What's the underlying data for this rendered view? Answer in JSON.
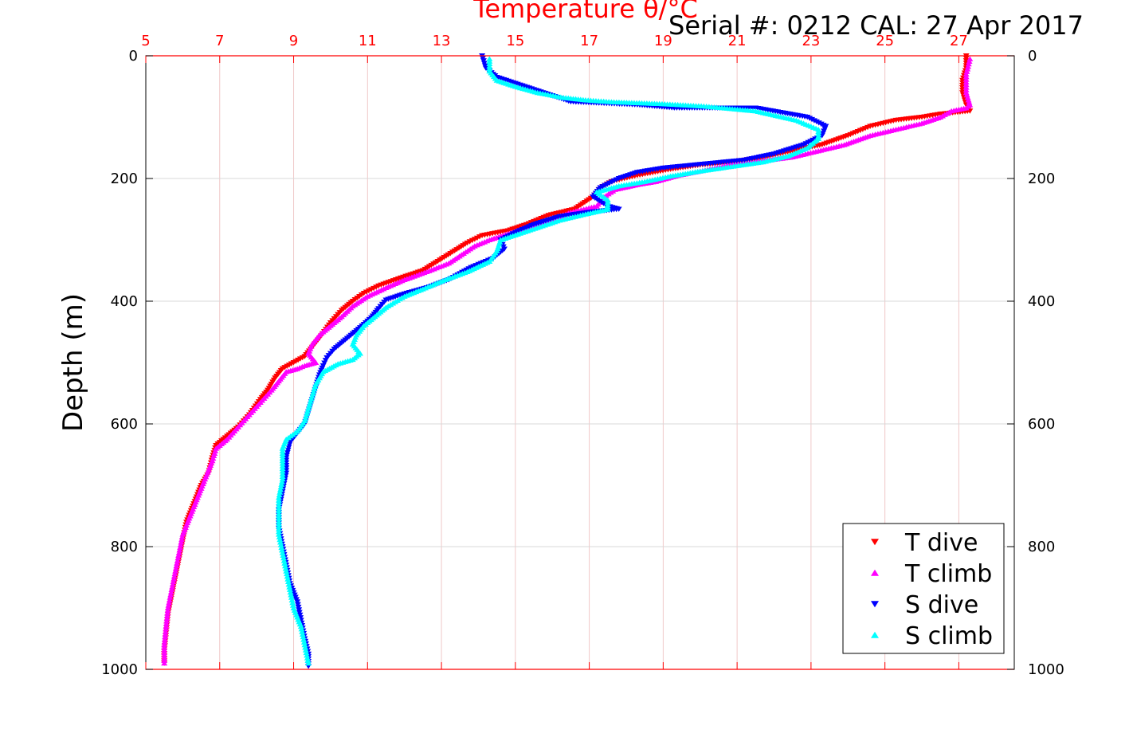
{
  "chart_data": {
    "type": "scatter",
    "title": "Temperature θ/°C",
    "annotation": "Serial #: 0212  CAL: 27 Apr 2017",
    "xlabel": "Temperature θ/°C",
    "ylabel": "Depth (m)",
    "xlim": [
      5,
      28.5
    ],
    "ylim": [
      0,
      1000
    ],
    "y_reversed": true,
    "x_ticks": [
      5,
      7,
      9,
      11,
      13,
      15,
      17,
      19,
      21,
      23,
      25,
      27
    ],
    "y_ticks": [
      0,
      200,
      400,
      600,
      800,
      1000
    ],
    "grid": true,
    "legend_position": "bottom-right",
    "colors": {
      "axis_top": "#ff0000",
      "axis_other": "#000000",
      "grid_x": "#f0c8c8",
      "grid_y": "#d8d8d8"
    },
    "series": [
      {
        "name": "T dive",
        "color": "#ff0000",
        "marker": "triangle-down",
        "points": [
          [
            27.2,
            0
          ],
          [
            27.2,
            20
          ],
          [
            27.1,
            40
          ],
          [
            27.1,
            60
          ],
          [
            27.2,
            80
          ],
          [
            27.3,
            90
          ],
          [
            26.5,
            95
          ],
          [
            26.0,
            100
          ],
          [
            25.3,
            105
          ],
          [
            24.6,
            115
          ],
          [
            24.0,
            130
          ],
          [
            23.3,
            145
          ],
          [
            22.5,
            155
          ],
          [
            21.7,
            165
          ],
          [
            21.0,
            172
          ],
          [
            20.0,
            178
          ],
          [
            19.2,
            185
          ],
          [
            18.3,
            195
          ],
          [
            17.6,
            205
          ],
          [
            17.3,
            215
          ],
          [
            17.1,
            230
          ],
          [
            16.6,
            250
          ],
          [
            15.9,
            260
          ],
          [
            15.3,
            275
          ],
          [
            14.8,
            285
          ],
          [
            14.1,
            293
          ],
          [
            13.7,
            305
          ],
          [
            13.3,
            320
          ],
          [
            12.9,
            335
          ],
          [
            12.5,
            350
          ],
          [
            11.9,
            362
          ],
          [
            11.3,
            375
          ],
          [
            10.9,
            387
          ],
          [
            10.6,
            400
          ],
          [
            10.3,
            415
          ],
          [
            10.0,
            435
          ],
          [
            9.7,
            460
          ],
          [
            9.5,
            475
          ],
          [
            9.3,
            490
          ],
          [
            9.0,
            500
          ],
          [
            8.7,
            510
          ],
          [
            8.5,
            525
          ],
          [
            8.3,
            545
          ],
          [
            8.1,
            560
          ],
          [
            7.8,
            585
          ],
          [
            7.5,
            605
          ],
          [
            7.2,
            620
          ],
          [
            6.9,
            635
          ],
          [
            6.8,
            655
          ],
          [
            6.7,
            680
          ],
          [
            6.5,
            700
          ],
          [
            6.3,
            730
          ],
          [
            6.1,
            760
          ],
          [
            6.0,
            790
          ],
          [
            5.9,
            820
          ],
          [
            5.8,
            850
          ],
          [
            5.7,
            880
          ],
          [
            5.6,
            910
          ],
          [
            5.55,
            940
          ],
          [
            5.5,
            970
          ],
          [
            5.5,
            990
          ]
        ]
      },
      {
        "name": "T climb",
        "color": "#ff00ff",
        "marker": "triangle-up",
        "points": [
          [
            5.5,
            990
          ],
          [
            5.5,
            960
          ],
          [
            5.55,
            930
          ],
          [
            5.6,
            900
          ],
          [
            5.7,
            870
          ],
          [
            5.8,
            840
          ],
          [
            5.9,
            810
          ],
          [
            6.0,
            780
          ],
          [
            6.2,
            750
          ],
          [
            6.4,
            720
          ],
          [
            6.6,
            690
          ],
          [
            6.8,
            660
          ],
          [
            6.9,
            640
          ],
          [
            7.2,
            625
          ],
          [
            7.5,
            605
          ],
          [
            7.8,
            585
          ],
          [
            8.1,
            565
          ],
          [
            8.4,
            545
          ],
          [
            8.6,
            530
          ],
          [
            8.8,
            515
          ],
          [
            9.1,
            510
          ],
          [
            9.3,
            505
          ],
          [
            9.6,
            500
          ],
          [
            9.4,
            485
          ],
          [
            9.5,
            470
          ],
          [
            9.7,
            455
          ],
          [
            10.0,
            440
          ],
          [
            10.3,
            425
          ],
          [
            10.6,
            408
          ],
          [
            11.0,
            392
          ],
          [
            11.5,
            378
          ],
          [
            12.0,
            365
          ],
          [
            12.6,
            352
          ],
          [
            13.2,
            338
          ],
          [
            13.6,
            322
          ],
          [
            13.9,
            310
          ],
          [
            14.3,
            300
          ],
          [
            14.8,
            290
          ],
          [
            15.3,
            280
          ],
          [
            15.9,
            270
          ],
          [
            16.5,
            255
          ],
          [
            17.2,
            245
          ],
          [
            17.4,
            230
          ],
          [
            17.7,
            218
          ],
          [
            18.3,
            210
          ],
          [
            18.8,
            205
          ],
          [
            19.4,
            195
          ],
          [
            20.0,
            188
          ],
          [
            20.8,
            178
          ],
          [
            21.6,
            172
          ],
          [
            22.5,
            165
          ],
          [
            23.2,
            155
          ],
          [
            23.9,
            145
          ],
          [
            24.6,
            130
          ],
          [
            25.3,
            120
          ],
          [
            26.0,
            110
          ],
          [
            26.5,
            100
          ],
          [
            26.8,
            90
          ],
          [
            27.2,
            85
          ],
          [
            27.3,
            80
          ],
          [
            27.2,
            60
          ],
          [
            27.2,
            30
          ],
          [
            27.3,
            5
          ]
        ]
      },
      {
        "name": "S dive",
        "color": "#0000ff",
        "marker": "triangle-down",
        "points": [
          [
            14.1,
            0
          ],
          [
            14.2,
            20
          ],
          [
            14.5,
            35
          ],
          [
            15.0,
            45
          ],
          [
            15.5,
            55
          ],
          [
            16.0,
            65
          ],
          [
            16.5,
            75
          ],
          [
            18.3,
            80
          ],
          [
            19.3,
            85
          ],
          [
            21.5,
            85
          ],
          [
            22.9,
            100
          ],
          [
            23.4,
            115
          ],
          [
            23.3,
            130
          ],
          [
            22.8,
            145
          ],
          [
            22.0,
            160
          ],
          [
            21.2,
            170
          ],
          [
            20.0,
            177
          ],
          [
            19.0,
            183
          ],
          [
            18.3,
            190
          ],
          [
            17.8,
            200
          ],
          [
            17.3,
            215
          ],
          [
            17.1,
            230
          ],
          [
            17.5,
            245
          ],
          [
            17.8,
            250
          ],
          [
            17.0,
            255
          ],
          [
            16.2,
            262
          ],
          [
            15.5,
            275
          ],
          [
            15.0,
            288
          ],
          [
            14.6,
            300
          ],
          [
            14.7,
            315
          ],
          [
            14.4,
            330
          ],
          [
            13.8,
            345
          ],
          [
            13.2,
            365
          ],
          [
            12.6,
            378
          ],
          [
            12.0,
            388
          ],
          [
            11.5,
            398
          ],
          [
            11.3,
            412
          ],
          [
            11.1,
            427
          ],
          [
            10.8,
            443
          ],
          [
            10.4,
            463
          ],
          [
            10.1,
            478
          ],
          [
            9.9,
            492
          ],
          [
            9.8,
            505
          ],
          [
            9.7,
            520
          ],
          [
            9.6,
            540
          ],
          [
            9.5,
            560
          ],
          [
            9.4,
            580
          ],
          [
            9.3,
            600
          ],
          [
            9.1,
            615
          ],
          [
            8.9,
            630
          ],
          [
            8.8,
            655
          ],
          [
            8.8,
            680
          ],
          [
            8.7,
            710
          ],
          [
            8.6,
            740
          ],
          [
            8.6,
            770
          ],
          [
            8.7,
            800
          ],
          [
            8.8,
            830
          ],
          [
            8.9,
            860
          ],
          [
            9.1,
            890
          ],
          [
            9.2,
            920
          ],
          [
            9.3,
            950
          ],
          [
            9.4,
            975
          ],
          [
            9.4,
            995
          ]
        ]
      },
      {
        "name": "S climb",
        "color": "#00ffff",
        "marker": "triangle-up",
        "points": [
          [
            9.4,
            990
          ],
          [
            9.3,
            960
          ],
          [
            9.2,
            930
          ],
          [
            9.0,
            900
          ],
          [
            8.9,
            870
          ],
          [
            8.8,
            840
          ],
          [
            8.7,
            810
          ],
          [
            8.6,
            780
          ],
          [
            8.6,
            750
          ],
          [
            8.6,
            720
          ],
          [
            8.7,
            690
          ],
          [
            8.7,
            660
          ],
          [
            8.7,
            640
          ],
          [
            8.8,
            625
          ],
          [
            9.1,
            612
          ],
          [
            9.3,
            595
          ],
          [
            9.4,
            575
          ],
          [
            9.5,
            555
          ],
          [
            9.6,
            535
          ],
          [
            9.8,
            515
          ],
          [
            10.2,
            502
          ],
          [
            10.6,
            495
          ],
          [
            10.8,
            485
          ],
          [
            10.6,
            470
          ],
          [
            10.7,
            455
          ],
          [
            10.9,
            440
          ],
          [
            11.2,
            425
          ],
          [
            11.5,
            410
          ],
          [
            12.0,
            392
          ],
          [
            12.5,
            380
          ],
          [
            13.1,
            365
          ],
          [
            13.7,
            352
          ],
          [
            14.3,
            335
          ],
          [
            14.5,
            318
          ],
          [
            14.6,
            300
          ],
          [
            15.0,
            292
          ],
          [
            15.6,
            280
          ],
          [
            16.2,
            268
          ],
          [
            16.9,
            258
          ],
          [
            17.5,
            250
          ],
          [
            17.5,
            235
          ],
          [
            17.2,
            222
          ],
          [
            17.8,
            212
          ],
          [
            18.5,
            205
          ],
          [
            19.2,
            196
          ],
          [
            20.0,
            188
          ],
          [
            20.9,
            180
          ],
          [
            21.7,
            173
          ],
          [
            22.4,
            163
          ],
          [
            22.9,
            150
          ],
          [
            23.2,
            135
          ],
          [
            23.2,
            120
          ],
          [
            22.6,
            105
          ],
          [
            21.5,
            90
          ],
          [
            20.1,
            82
          ],
          [
            18.9,
            78
          ],
          [
            17.6,
            75
          ],
          [
            16.9,
            72
          ],
          [
            16.3,
            68
          ],
          [
            15.6,
            60
          ],
          [
            15.0,
            50
          ],
          [
            14.5,
            40
          ],
          [
            14.3,
            25
          ],
          [
            14.3,
            5
          ]
        ]
      }
    ]
  }
}
